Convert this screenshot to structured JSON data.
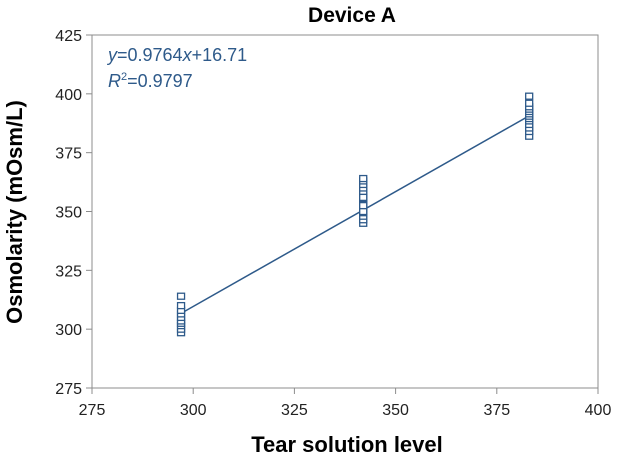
{
  "chart_data": {
    "type": "scatter",
    "title": "Device A",
    "xlabel": "Tear solution level",
    "ylabel": "Osmolarity (mOsm/L)",
    "xlim": [
      275,
      400
    ],
    "ylim": [
      275,
      425
    ],
    "xticks": [
      "275",
      "300",
      "325",
      "350",
      "375",
      "400"
    ],
    "yticks": [
      "275",
      "300",
      "325",
      "350",
      "375",
      "400",
      "425"
    ],
    "grid": false,
    "series": [
      {
        "x": [
          297,
          297,
          297,
          297,
          297,
          297,
          297,
          297,
          297,
          297,
          342,
          342,
          342,
          342,
          342,
          342,
          342,
          342,
          342,
          342,
          342,
          342,
          342,
          342,
          342,
          342,
          342,
          342,
          383,
          383,
          383,
          383,
          383,
          383,
          383,
          383,
          383,
          383,
          383,
          383,
          383
        ],
        "y": [
          298.5,
          300,
          301.5,
          302.5,
          303.5,
          305,
          306.5,
          308,
          310,
          314,
          345,
          346.5,
          348,
          349.5,
          351,
          352,
          353,
          354.5,
          355.5,
          357,
          358.5,
          360,
          361.5,
          363,
          364,
          350,
          352.5,
          356,
          382,
          384,
          385.5,
          387,
          388.5,
          389.5,
          390.5,
          391.5,
          392.5,
          393.5,
          394.5,
          396,
          399
        ]
      }
    ],
    "trendline": {
      "slope": 0.9764,
      "intercept": 16.71,
      "x_range": [
        297,
        383
      ]
    },
    "annotations": {
      "equation": {
        "y_var": "y",
        "eq": "=0.9764",
        "x_var": "x",
        "rest": "+16.71"
      },
      "r2": {
        "r": "R",
        "sup": "2",
        "rest": "=0.9797"
      }
    },
    "colors": {
      "series": "#2e5a8a",
      "axis": "#8c8c8c"
    }
  }
}
